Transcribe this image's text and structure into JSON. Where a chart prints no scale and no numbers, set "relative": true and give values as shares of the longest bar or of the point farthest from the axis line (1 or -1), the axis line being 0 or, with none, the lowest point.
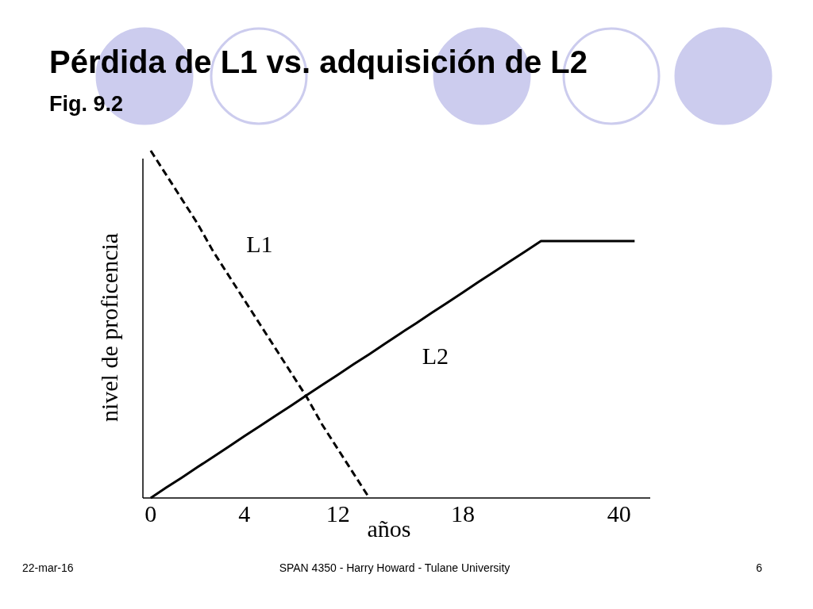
{
  "chart_data": {
    "type": "line",
    "title": "Pérdida de L1 vs. adquisición de L2",
    "subtitle": "Fig. 9.2",
    "xlabel": "años",
    "ylabel": "nivel de proficencia",
    "relative": true,
    "tick_labels": "x",
    "categories": [
      "0",
      null,
      null,
      null,
      null,
      null,
      "4",
      null,
      null,
      null,
      null,
      null,
      "12",
      null,
      null,
      null,
      null,
      null,
      null,
      null,
      "18",
      null,
      null,
      null,
      null,
      null,
      null,
      null,
      null,
      null,
      "40",
      null,
      null
    ],
    "series": [
      {
        "name": "L1",
        "color": "#000000",
        "line_style": "dashed",
        "values": [
          1,
          0.93,
          0.86,
          0.79,
          0.71,
          0.64,
          0.57,
          0.5,
          0.43,
          0.36,
          0.29,
          0.21,
          0.14,
          0.07,
          0,
          null,
          null,
          null,
          null,
          null,
          null,
          null,
          null,
          null,
          null,
          null,
          null,
          null,
          null,
          null,
          null,
          null,
          null
        ]
      },
      {
        "name": "L2",
        "color": "#000000",
        "line_style": "solid",
        "values": [
          0,
          0.03,
          0.059,
          0.089,
          0.118,
          0.148,
          0.178,
          0.207,
          0.237,
          0.266,
          0.296,
          0.326,
          0.355,
          0.385,
          0.414,
          0.444,
          0.474,
          0.503,
          0.533,
          0.562,
          0.592,
          0.622,
          0.651,
          0.681,
          0.71,
          0.74,
          0.74,
          0.74,
          0.74,
          0.74,
          0.74,
          0.74,
          null
        ]
      }
    ],
    "annotations": [
      "22-mar-16",
      "SPAN 4350 - Harry Howard - Tulane University",
      "6"
    ]
  }
}
